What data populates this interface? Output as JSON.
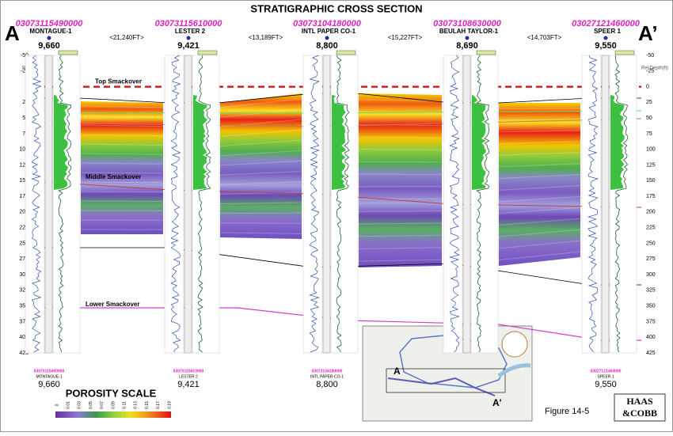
{
  "title": "STRATIGRAPHIC CROSS SECTION",
  "endpoints": {
    "left": "A",
    "right": "A’"
  },
  "depth_label": "Rel Depth(ft)",
  "depth_ticks": [
    -50,
    -25,
    0,
    25,
    50,
    75,
    100,
    125,
    150,
    175,
    200,
    225,
    250,
    275,
    300,
    325,
    350,
    375,
    400,
    425
  ],
  "wells": [
    {
      "api": "03073115490000",
      "name": "MONTAGUE-1",
      "value": "9,660",
      "footer_api": "03073115490000",
      "footer_name": "MONTAGUE-1",
      "footer_value": "9,660"
    },
    {
      "api": "03073115610000",
      "name": "LESTER 2",
      "value": "9,421",
      "footer_api": "03073115610000",
      "footer_name": "LESTER 2",
      "footer_value": "9,421"
    },
    {
      "api": "03073104180000",
      "name": "INTL PAPER CO-1",
      "value": "8,800",
      "footer_api": "03073104180000",
      "footer_name": "INTL PAPER CO-1",
      "footer_value": "8,800"
    },
    {
      "api": "03073108630000",
      "name": "BEULAH TAYLOR-1",
      "value": "8,690"
    },
    {
      "api": "03027121460000",
      "name": "SPEER 1",
      "value": "9,550",
      "footer_api": "03027121460000",
      "footer_name": "SPEER 1",
      "footer_value": "9,550"
    }
  ],
  "spacings": [
    "<21,240FT>",
    "<13,189FT>",
    "<15,227FT>",
    "<14,703FT>"
  ],
  "formations": [
    "Top Smackover",
    "Middle Smackover",
    "Lower Smackover"
  ],
  "porosity_scale": {
    "title": "POROSITY SCALE",
    "labels": [
      "0",
      "0.01",
      "0.03",
      "0.05",
      "0.07",
      "0.09",
      "0.11",
      "0.13",
      "0.15",
      "0.17",
      "0.19"
    ]
  },
  "map": {
    "start": "A",
    "end": "A'"
  },
  "figure_label": "Figure 14-5",
  "logo": {
    "line1": "HAAS",
    "line2": "&COBB"
  }
}
